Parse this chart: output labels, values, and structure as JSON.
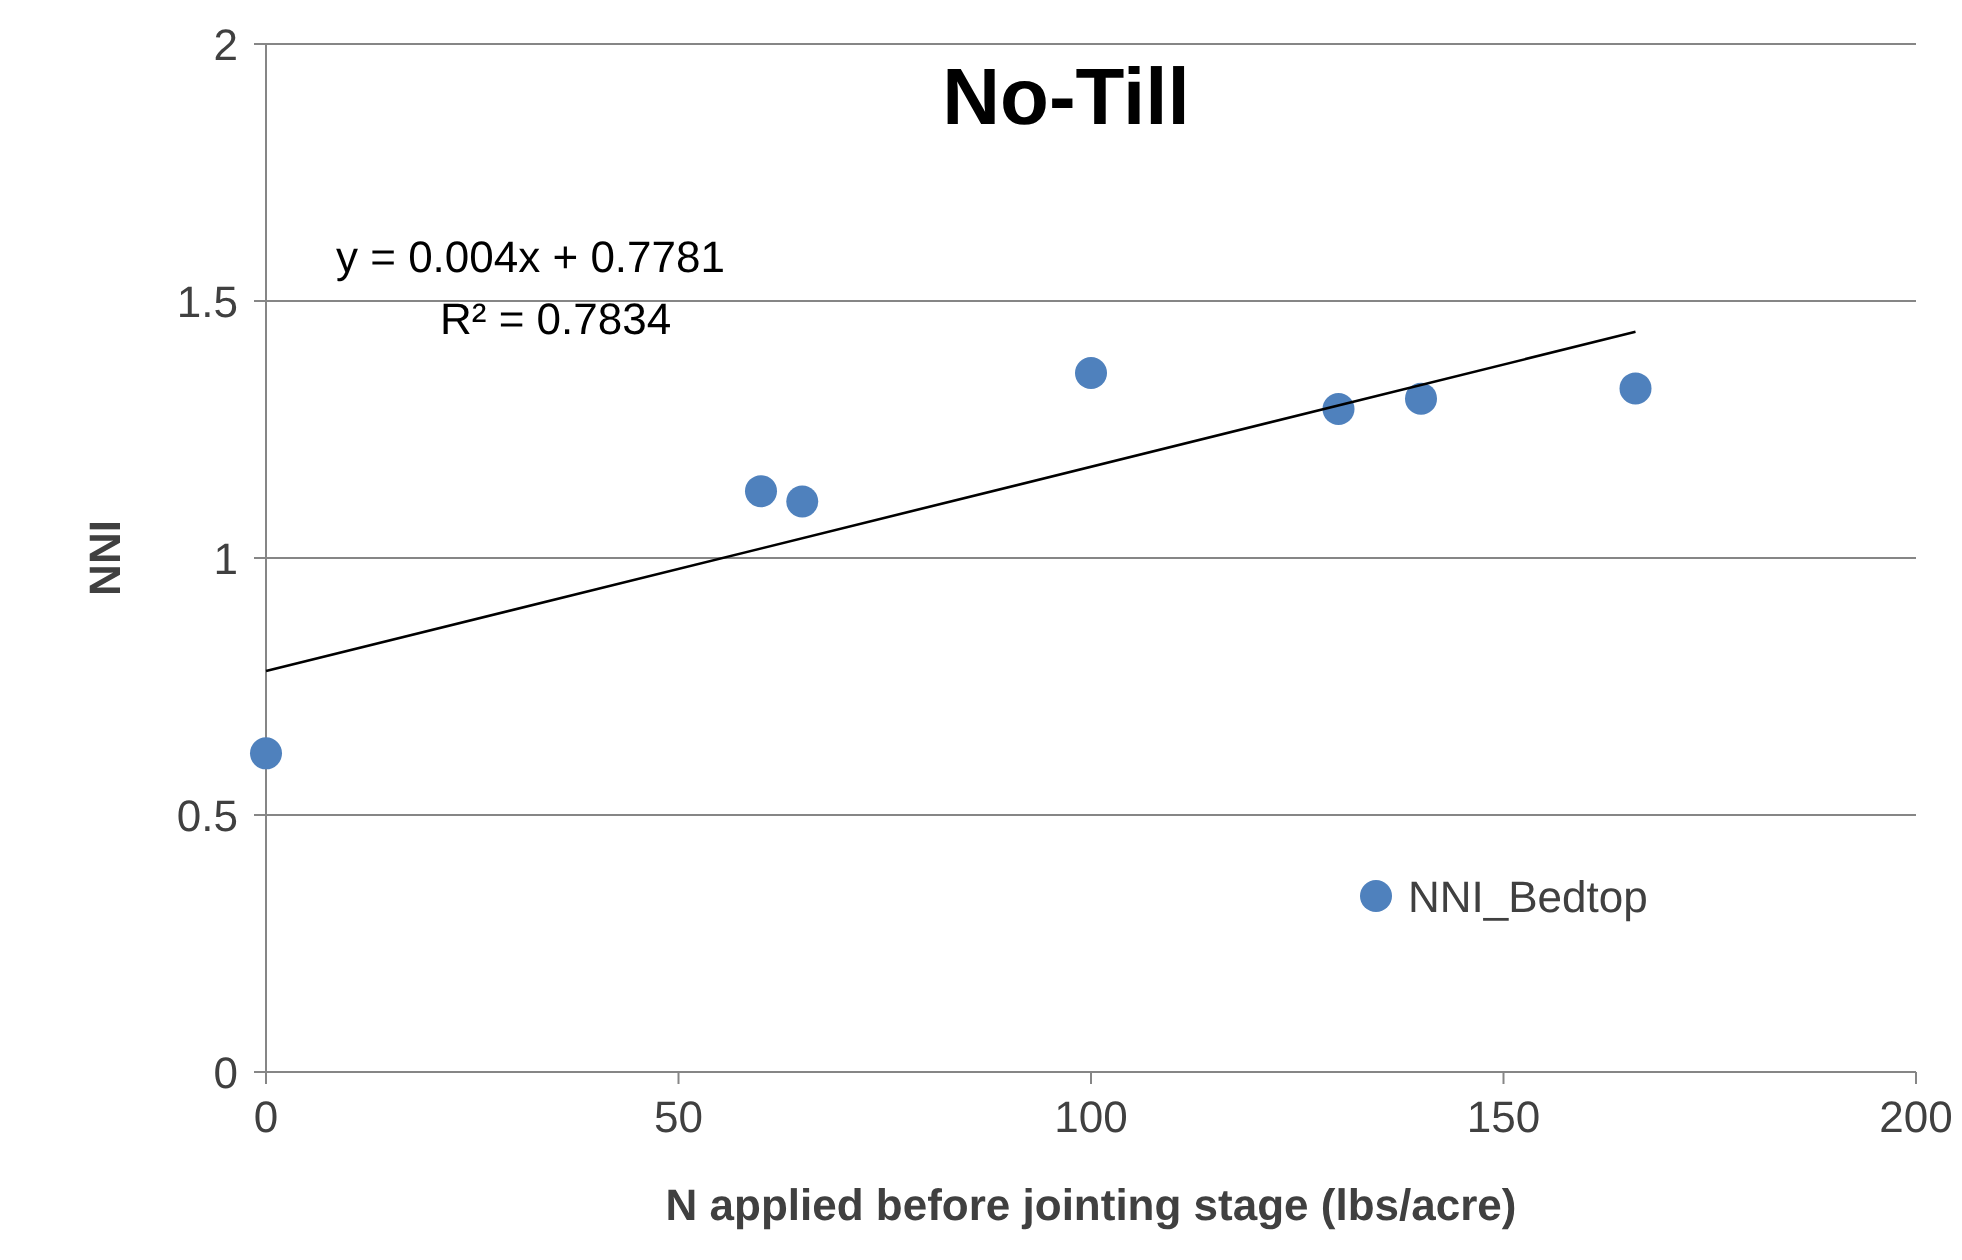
{
  "chart_data": {
    "type": "scatter",
    "title": "No-Till",
    "xlabel": "N applied before jointing stage (lbs/acre)",
    "ylabel": "NNI",
    "xlim": [
      0,
      200
    ],
    "xticks": [
      0,
      50,
      100,
      150,
      200
    ],
    "ylim": [
      0,
      2
    ],
    "yticks": [
      0,
      0.5,
      1,
      1.5,
      2
    ],
    "grid": "y",
    "legend": "bottom right",
    "annotations": [
      "y = 0.004x + 0.7781",
      "R² = 0.7834"
    ],
    "series": [
      {
        "name": "NNI_Bedtop",
        "color": "#4f81bd",
        "marker": "circle",
        "x": [
          0,
          60,
          65,
          100,
          130,
          140,
          166
        ],
        "values": [
          0.62,
          1.13,
          1.11,
          1.36,
          1.29,
          1.31,
          1.33
        ]
      },
      {
        "type": "line",
        "color": "#000000",
        "x": [
          0,
          166
        ],
        "values": [
          0.78,
          1.44
        ]
      }
    ]
  }
}
